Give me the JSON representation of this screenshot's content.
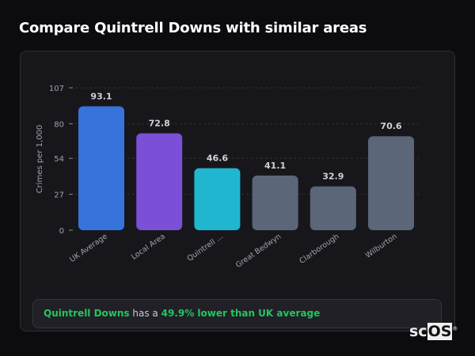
{
  "page": {
    "title": "Compare Quintrell Downs with similar areas"
  },
  "chart_data": {
    "type": "bar",
    "categories": [
      "UK Average",
      "Local Area",
      "Quintrell ...",
      "Great Bedwyn",
      "Clarborough",
      "Wilburton"
    ],
    "values": [
      93.1,
      72.8,
      46.6,
      41.1,
      32.9,
      70.6
    ],
    "value_labels": [
      "93.1",
      "72.8",
      "46.6",
      "41.1",
      "32.9",
      "70.6"
    ],
    "colors": [
      "#3674db",
      "#7b4fd6",
      "#21b6cf",
      "#5b6678",
      "#5b6678",
      "#5b6678"
    ],
    "ylabel": "Crimes per 1,000",
    "yticks": [
      "0",
      "27",
      "54",
      "80",
      "107"
    ],
    "ytick_values": [
      0,
      27,
      54,
      80,
      107
    ],
    "ylim": [
      0,
      107
    ],
    "grid": true
  },
  "summary": {
    "area": "Quintrell Downs",
    "middle": " has a ",
    "result": "49.9% lower than UK average"
  },
  "watermark": {
    "part1": "sc",
    "part2": "OS",
    "mark": "®"
  }
}
